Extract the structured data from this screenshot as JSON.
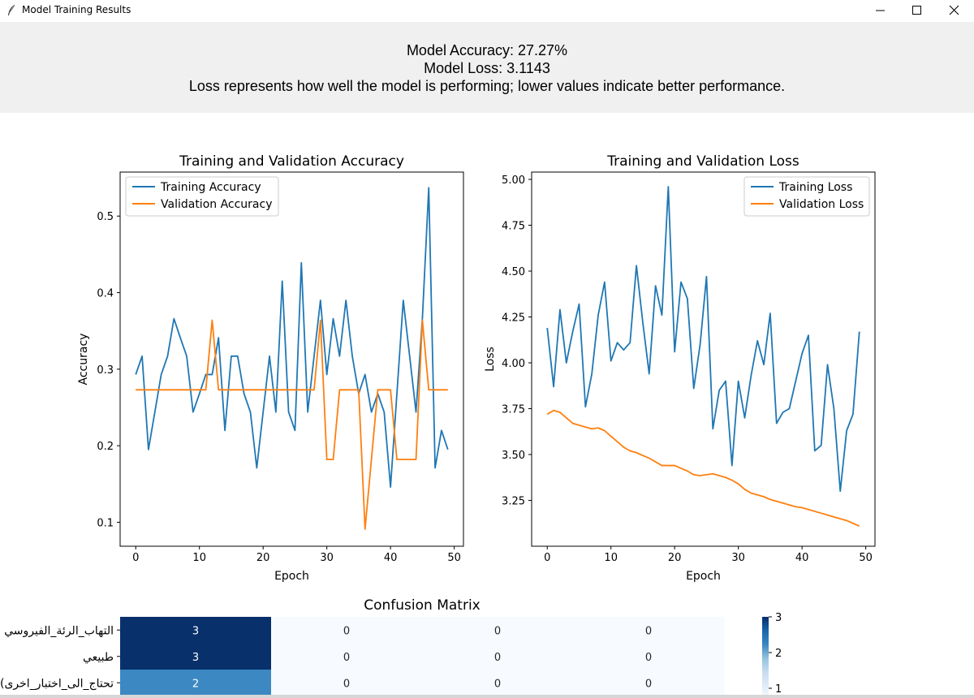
{
  "window": {
    "title": "Model Training Results",
    "minimize_icon": "minimize-icon",
    "maximize_icon": "maximize-icon",
    "close_icon": "close-icon",
    "app_icon": "feather-icon"
  },
  "summary": {
    "accuracy_text": "Model Accuracy: 27.27%",
    "loss_text": "Model Loss: 3.1143",
    "note_text": "Loss represents how well the model is performing; lower values indicate better performance."
  },
  "colors": {
    "training": "#1f77b4",
    "validation": "#ff7f0e",
    "header_bg": "#f0f0f0"
  },
  "chart_data": [
    {
      "type": "line",
      "title": "Training and Validation Accuracy",
      "xlabel": "Epoch",
      "ylabel": "Accuracy",
      "xlim": [
        -2.45,
        51.45
      ],
      "ylim": [
        0.0687,
        0.5575
      ],
      "xticks": [
        0,
        10,
        20,
        30,
        40,
        50
      ],
      "yticks": [
        0.1,
        0.2,
        0.3,
        0.4,
        0.5
      ],
      "ytick_labels": [
        "0.1",
        "0.2",
        "0.3",
        "0.4",
        "0.5"
      ],
      "legend": "upper left",
      "grid": false,
      "x": [
        0,
        1,
        2,
        3,
        4,
        5,
        6,
        7,
        8,
        9,
        10,
        11,
        12,
        13,
        14,
        15,
        16,
        17,
        18,
        19,
        20,
        21,
        22,
        23,
        24,
        25,
        26,
        27,
        28,
        29,
        30,
        31,
        32,
        33,
        34,
        35,
        36,
        37,
        38,
        39,
        40,
        41,
        42,
        43,
        44,
        45,
        46,
        47,
        48,
        49
      ],
      "series": [
        {
          "name": "Training Accuracy",
          "values": [
            0.293,
            0.317,
            0.195,
            0.244,
            0.293,
            0.317,
            0.366,
            0.341,
            0.317,
            0.244,
            0.268,
            0.293,
            0.293,
            0.341,
            0.22,
            0.317,
            0.317,
            0.268,
            0.244,
            0.171,
            0.244,
            0.317,
            0.244,
            0.415,
            0.244,
            0.22,
            0.439,
            0.244,
            0.317,
            0.39,
            0.293,
            0.366,
            0.317,
            0.39,
            0.317,
            0.268,
            0.293,
            0.244,
            0.268,
            0.244,
            0.146,
            0.268,
            0.39,
            0.317,
            0.244,
            0.366,
            0.537,
            0.171,
            0.22,
            0.195
          ]
        },
        {
          "name": "Validation Accuracy",
          "values": [
            0.273,
            0.273,
            0.273,
            0.273,
            0.273,
            0.273,
            0.273,
            0.273,
            0.273,
            0.273,
            0.273,
            0.273,
            0.364,
            0.273,
            0.273,
            0.273,
            0.273,
            0.273,
            0.273,
            0.273,
            0.273,
            0.273,
            0.273,
            0.273,
            0.273,
            0.273,
            0.273,
            0.273,
            0.273,
            0.364,
            0.182,
            0.182,
            0.273,
            0.273,
            0.273,
            0.273,
            0.091,
            0.182,
            0.273,
            0.273,
            0.273,
            0.182,
            0.182,
            0.182,
            0.182,
            0.364,
            0.273,
            0.273,
            0.273,
            0.273
          ]
        }
      ]
    },
    {
      "type": "line",
      "title": "Training and Validation Loss",
      "xlabel": "Epoch",
      "ylabel": "Loss",
      "xlim": [
        -2.45,
        51.45
      ],
      "ylim": [
        3.0,
        5.04
      ],
      "xticks": [
        0,
        10,
        20,
        30,
        40,
        50
      ],
      "yticks": [
        3.25,
        3.5,
        3.75,
        4.0,
        4.25,
        4.5,
        4.75,
        5.0
      ],
      "ytick_labels": [
        "3.25",
        "3.50",
        "3.75",
        "4.00",
        "4.25",
        "4.50",
        "4.75",
        "5.00"
      ],
      "legend": "upper right",
      "grid": false,
      "x": [
        0,
        1,
        2,
        3,
        4,
        5,
        6,
        7,
        8,
        9,
        10,
        11,
        12,
        13,
        14,
        15,
        16,
        17,
        18,
        19,
        20,
        21,
        22,
        23,
        24,
        25,
        26,
        27,
        28,
        29,
        30,
        31,
        32,
        33,
        34,
        35,
        36,
        37,
        38,
        39,
        40,
        41,
        42,
        43,
        44,
        45,
        46,
        47,
        48,
        49
      ],
      "series": [
        {
          "name": "Training Loss",
          "values": [
            4.19,
            3.87,
            4.29,
            4.0,
            4.17,
            4.32,
            3.76,
            3.94,
            4.26,
            4.44,
            4.01,
            4.11,
            4.07,
            4.11,
            4.53,
            4.22,
            3.94,
            4.42,
            4.26,
            4.96,
            4.06,
            4.44,
            4.35,
            3.86,
            4.1,
            4.47,
            3.64,
            3.85,
            3.9,
            3.44,
            3.9,
            3.7,
            3.93,
            4.12,
            3.99,
            4.27,
            3.67,
            3.73,
            3.75,
            3.9,
            4.05,
            4.15,
            3.52,
            3.55,
            3.99,
            3.75,
            3.3,
            3.63,
            3.72,
            4.17
          ]
        },
        {
          "name": "Validation Loss",
          "values": [
            3.72,
            3.74,
            3.73,
            3.7,
            3.67,
            3.66,
            3.65,
            3.64,
            3.645,
            3.63,
            3.6,
            3.57,
            3.54,
            3.52,
            3.51,
            3.495,
            3.48,
            3.46,
            3.44,
            3.44,
            3.44,
            3.425,
            3.41,
            3.39,
            3.385,
            3.39,
            3.395,
            3.385,
            3.375,
            3.36,
            3.34,
            3.31,
            3.29,
            3.28,
            3.27,
            3.255,
            3.245,
            3.235,
            3.225,
            3.215,
            3.21,
            3.2,
            3.19,
            3.18,
            3.17,
            3.16,
            3.15,
            3.14,
            3.125,
            3.11
          ]
        }
      ]
    },
    {
      "type": "heatmap",
      "title": "Confusion Matrix",
      "row_labels": [
        "التهاب_الرئة_الفيروسي",
        "طبيعي",
        "(تحتاج_الى_اختبار_اخرى"
      ],
      "values": [
        [
          3,
          0,
          0,
          0
        ],
        [
          3,
          0,
          0,
          0
        ],
        [
          2,
          0,
          0,
          0
        ]
      ],
      "colorbar_ticks": [
        1,
        2,
        3
      ],
      "vmin": 0,
      "vmax": 3,
      "colormap": "Blues"
    }
  ]
}
